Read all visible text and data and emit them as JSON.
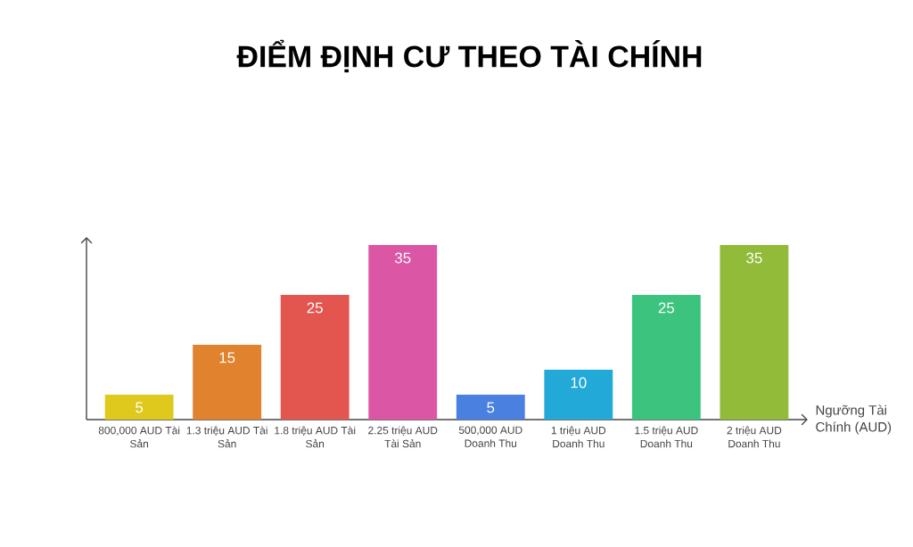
{
  "chart_data": {
    "type": "bar",
    "title": "ĐIỂM ĐỊNH CƯ THEO TÀI CHÍNH",
    "xlabel": "Ngưỡng Tài Chính (AUD)",
    "categories": [
      "800,000 AUD Tài Sản",
      "1.3 triệu AUD Tài Sản",
      "1.8 triệu AUD Tài Sản",
      "2.25 triệu AUD Tài Sản",
      "500,000 AUD Doanh Thu",
      "1 triệu AUD Doanh Thu",
      "1.5 triệu AUD Doanh Thu",
      "2 triệu AUD Doanh Thu"
    ],
    "values": [
      5,
      15,
      25,
      35,
      5,
      10,
      25,
      35
    ],
    "colors": [
      "#dfc91c",
      "#e0822e",
      "#e35650",
      "#dc56a6",
      "#4a80e0",
      "#22a9d8",
      "#3cc47e",
      "#92bb3a"
    ],
    "data_labels": true
  }
}
